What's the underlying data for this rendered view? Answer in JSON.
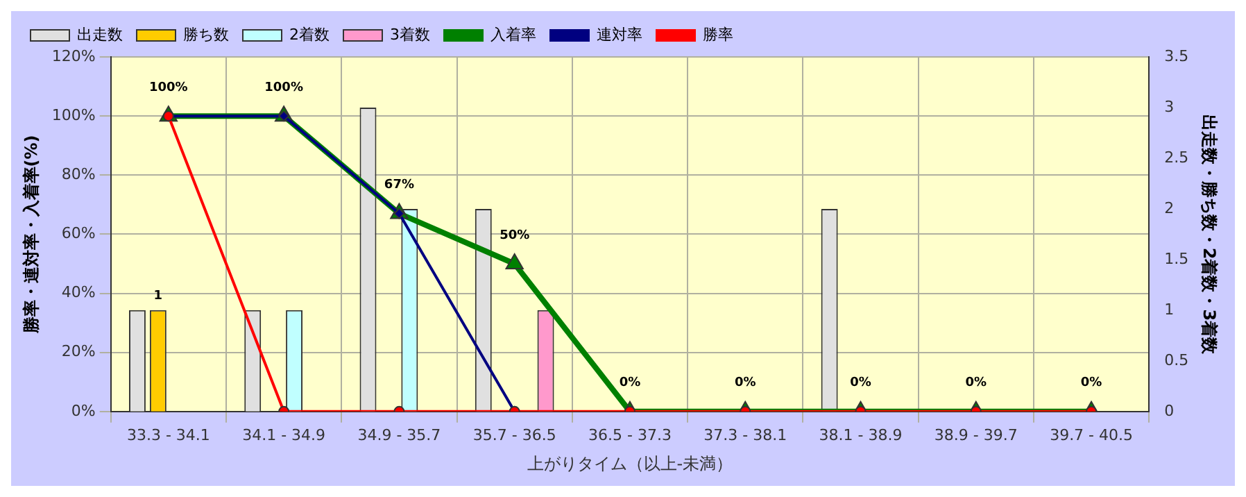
{
  "chart_data": {
    "type": "bar",
    "xlabel": "上がりタイム（以上-未満）",
    "ylabel": "勝率・連対率・入着率(%)",
    "y2label": "出走数・勝ち数・2着数・3着数",
    "categories": [
      "33.3 - 34.1",
      "34.1 - 34.9",
      "34.9 - 35.7",
      "35.7 - 36.5",
      "36.5 - 37.3",
      "37.3 - 38.1",
      "38.1 - 38.9",
      "38.9 - 39.7",
      "39.7 - 40.5"
    ],
    "series": [
      {
        "name": "出走数",
        "axis": "y2",
        "color": "#e0e0e0",
        "values": [
          1,
          1,
          3,
          2,
          0,
          0,
          2,
          0,
          0
        ]
      },
      {
        "name": "勝ち数",
        "axis": "y2",
        "color": "#ffcc00",
        "values": [
          1,
          0,
          0,
          0,
          0,
          0,
          0,
          0,
          0
        ],
        "value_labels": [
          "1",
          null,
          null,
          null,
          null,
          null,
          null,
          null,
          null
        ]
      },
      {
        "name": "2着数",
        "axis": "y2",
        "color": "#c0ffff",
        "values": [
          0,
          1,
          2,
          0,
          0,
          0,
          0,
          0,
          0
        ]
      },
      {
        "name": "3着数",
        "axis": "y2",
        "color": "#ff99cc",
        "values": [
          0,
          0,
          0,
          1,
          0,
          0,
          0,
          0,
          0
        ]
      },
      {
        "name": "入着率",
        "type": "line",
        "color": "#008000",
        "marker": "triangle",
        "values": [
          100,
          100,
          67,
          50,
          0,
          0,
          0,
          0,
          0
        ],
        "value_labels": [
          "100%",
          "100%",
          "67%",
          "50%",
          "0%",
          "0%",
          "0%",
          "0%",
          "0%"
        ]
      },
      {
        "name": "連対率",
        "type": "line",
        "color": "#000080",
        "marker": "diamond",
        "values": [
          100,
          100,
          67,
          0,
          null,
          null,
          null,
          null,
          null
        ]
      },
      {
        "name": "勝率",
        "type": "line",
        "color": "#ff0000",
        "marker": "circle",
        "values": [
          100,
          0,
          0,
          0,
          0,
          0,
          0,
          0,
          0
        ]
      }
    ],
    "ylim": [
      0,
      120
    ],
    "yticks": [
      {
        "value": 0,
        "label": "0%"
      },
      {
        "value": 20,
        "label": "20%"
      },
      {
        "value": 40,
        "label": "40%"
      },
      {
        "value": 60,
        "label": "60%"
      },
      {
        "value": 80,
        "label": "80%"
      },
      {
        "value": 100,
        "label": "100%"
      },
      {
        "value": 120,
        "label": "120%"
      }
    ],
    "y2lim": [
      0,
      3.5
    ],
    "y2ticks": [
      0,
      0.5,
      1,
      1.5,
      2,
      2.5,
      3,
      3.5
    ],
    "grid": true,
    "legend": "top"
  }
}
